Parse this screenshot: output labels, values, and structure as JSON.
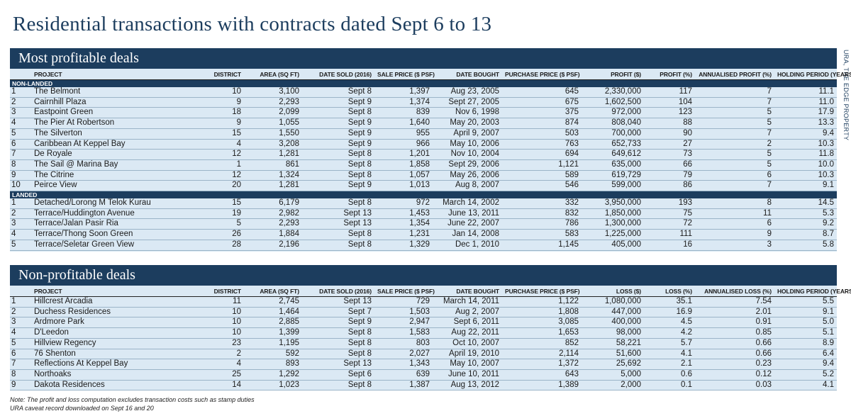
{
  "page_title": "Residential transactions with contracts dated Sept 6 to 13",
  "source_credit": "URA, THE EDGE PROPERTY",
  "profitable": {
    "title": "Most profitable deals",
    "headers": [
      "",
      "PROJECT",
      "DISTRICT",
      "AREA (SQ FT)",
      "DATE SOLD (2016)",
      "SALE PRICE ($ PSF)",
      "DATE BOUGHT",
      "PURCHASE PRICE ($ PSF)",
      "PROFIT ($)",
      "PROFIT (%)",
      "ANNUALISED PROFIT (%)",
      "HOLDING PERIOD (YEARS)"
    ],
    "groups": [
      {
        "label": "NON-LANDED",
        "rows": [
          [
            "1",
            "The Belmont",
            "10",
            "3,100",
            "Sept 8",
            "1,397",
            "Aug 23, 2005",
            "645",
            "2,330,000",
            "117",
            "7",
            "11.1"
          ],
          [
            "2",
            "Cairnhill Plaza",
            "9",
            "2,293",
            "Sept 9",
            "1,374",
            "Sept 27, 2005",
            "675",
            "1,602,500",
            "104",
            "7",
            "11.0"
          ],
          [
            "3",
            "Eastpoint Green",
            "18",
            "2,099",
            "Sept 8",
            "839",
            "Nov 6, 1998",
            "375",
            "972,000",
            "123",
            "5",
            "17.9"
          ],
          [
            "4",
            "The Pier At Robertson",
            "9",
            "1,055",
            "Sept 9",
            "1,640",
            "May 20, 2003",
            "874",
            "808,040",
            "88",
            "5",
            "13.3"
          ],
          [
            "5",
            "The Silverton",
            "15",
            "1,550",
            "Sept 9",
            "955",
            "April 9, 2007",
            "503",
            "700,000",
            "90",
            "7",
            "9.4"
          ],
          [
            "6",
            "Caribbean At Keppel Bay",
            "4",
            "3,208",
            "Sept 9",
            "966",
            "May 10, 2006",
            "763",
            "652,733",
            "27",
            "2",
            "10.3"
          ],
          [
            "7",
            "De Royale",
            "12",
            "1,281",
            "Sept 8",
            "1,201",
            "Nov 10, 2004",
            "694",
            "649,612",
            "73",
            "5",
            "11.8"
          ],
          [
            "8",
            "The Sail @ Marina Bay",
            "1",
            "861",
            "Sept 8",
            "1,858",
            "Sept 29, 2006",
            "1,121",
            "635,000",
            "66",
            "5",
            "10.0"
          ],
          [
            "9",
            "The Citrine",
            "12",
            "1,324",
            "Sept 8",
            "1,057",
            "May 26, 2006",
            "589",
            "619,729",
            "79",
            "6",
            "10.3"
          ],
          [
            "10",
            "Peirce View",
            "20",
            "1,281",
            "Sept 9",
            "1,013",
            "Aug 8, 2007",
            "546",
            "599,000",
            "86",
            "7",
            "9.1"
          ]
        ]
      },
      {
        "label": "LANDED",
        "rows": [
          [
            "1",
            "Detached/Lorong M Telok Kurau",
            "15",
            "6,179",
            "Sept 8",
            "972",
            "March 14, 2002",
            "332",
            "3,950,000",
            "193",
            "8",
            "14.5"
          ],
          [
            "2",
            "Terrace/Huddington Avenue",
            "19",
            "2,982",
            "Sept 13",
            "1,453",
            "June 13, 2011",
            "832",
            "1,850,000",
            "75",
            "11",
            "5.3"
          ],
          [
            "3",
            "Terrace/Jalan Pasir Ria",
            "5",
            "2,293",
            "Sept 13",
            "1,354",
            "June 22, 2007",
            "786",
            "1,300,000",
            "72",
            "6",
            "9.2"
          ],
          [
            "4",
            "Terrace/Thong Soon Green",
            "26",
            "1,884",
            "Sept 8",
            "1,231",
            "Jan 14, 2008",
            "583",
            "1,225,000",
            "111",
            "9",
            "8.7"
          ],
          [
            "5",
            "Terrace/Seletar Green View",
            "28",
            "2,196",
            "Sept 8",
            "1,329",
            "Dec 1, 2010",
            "1,145",
            "405,000",
            "16",
            "3",
            "5.8"
          ]
        ]
      }
    ]
  },
  "nonprofit": {
    "title": "Non-profitable deals",
    "headers": [
      "",
      "PROJECT",
      "DISTRICT",
      "AREA (SQ FT)",
      "DATE SOLD (2016)",
      "SALE PRICE ($ PSF)",
      "DATE BOUGHT",
      "PURCHASE PRICE ($ PSF)",
      "LOSS ($)",
      "LOSS (%)",
      "ANNUALISED LOSS (%)",
      "HOLDING PERIOD (YEARS)"
    ],
    "rows": [
      [
        "1",
        "Hillcrest Arcadia",
        "11",
        "2,745",
        "Sept 13",
        "729",
        "March 14, 2011",
        "1,122",
        "1,080,000",
        "35.1",
        "7.54",
        "5.5"
      ],
      [
        "2",
        "Duchess Residences",
        "10",
        "1,464",
        "Sept 7",
        "1,503",
        "Aug 2, 2007",
        "1,808",
        "447,000",
        "16.9",
        "2.01",
        "9.1"
      ],
      [
        "3",
        "Ardmore Park",
        "10",
        "2,885",
        "Sept 9",
        "2,947",
        "Sept 6, 2011",
        "3,085",
        "400,000",
        "4.5",
        "0.91",
        "5.0"
      ],
      [
        "4",
        "D'Leedon",
        "10",
        "1,399",
        "Sept 8",
        "1,583",
        "Aug 22, 2011",
        "1,653",
        "98,000",
        "4.2",
        "0.85",
        "5.1"
      ],
      [
        "5",
        "Hillview Regency",
        "23",
        "1,195",
        "Sept 8",
        "803",
        "Oct 10, 2007",
        "852",
        "58,221",
        "5.7",
        "0.66",
        "8.9"
      ],
      [
        "6",
        "76 Shenton",
        "2",
        "592",
        "Sept 8",
        "2,027",
        "April 19, 2010",
        "2,114",
        "51,600",
        "4.1",
        "0.66",
        "6.4"
      ],
      [
        "7",
        "Reflections At Keppel Bay",
        "4",
        "893",
        "Sept 13",
        "1,343",
        "May 10, 2007",
        "1,372",
        "25,692",
        "2.1",
        "0.23",
        "9.4"
      ],
      [
        "8",
        "Northoaks",
        "25",
        "1,292",
        "Sept 6",
        "639",
        "June 10, 2011",
        "643",
        "5,000",
        "0.6",
        "0.12",
        "5.2"
      ],
      [
        "9",
        "Dakota Residences",
        "14",
        "1,023",
        "Sept 8",
        "1,387",
        "Aug 13, 2012",
        "1,389",
        "2,000",
        "0.1",
        "0.03",
        "4.1"
      ]
    ]
  },
  "footnotes": [
    "Note: The profit and loss computation excludes transaction costs such as stamp duties",
    "URA caveat record downloaded on Sept 16 and 20"
  ]
}
